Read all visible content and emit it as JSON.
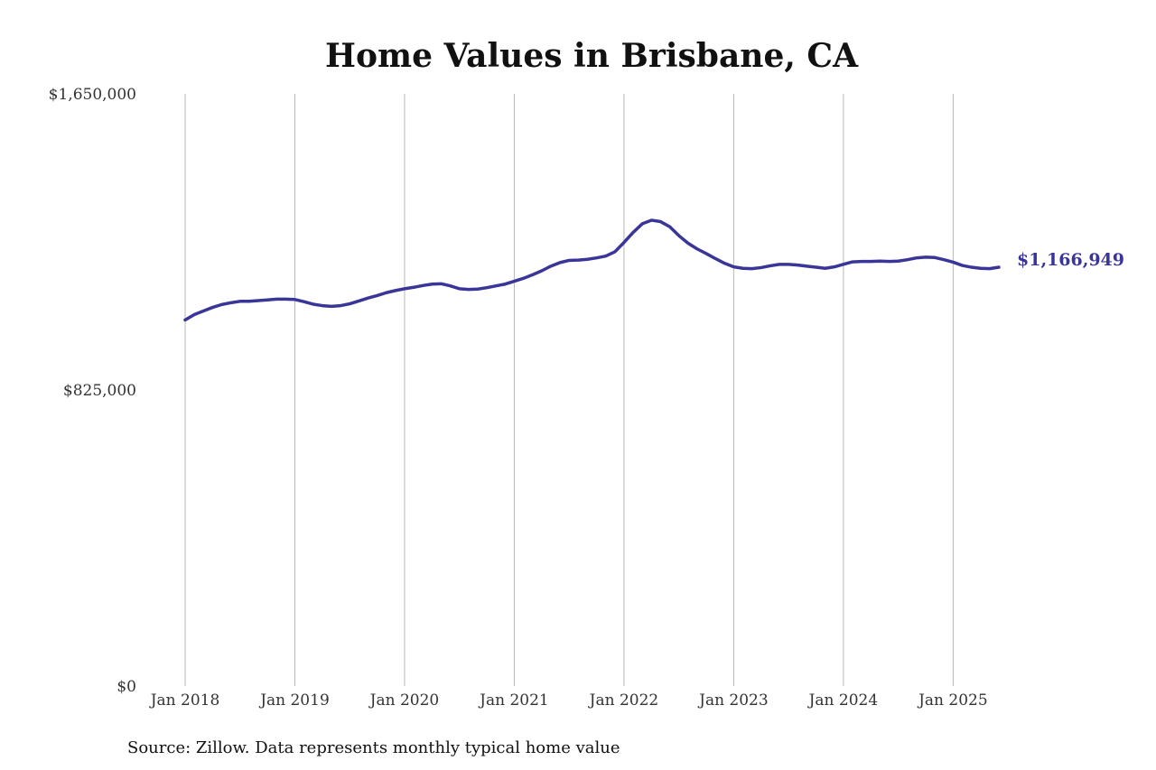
{
  "source_note": "Source: Zillow. Data represents monthly typical home value",
  "colors": {
    "line": "#3a3598",
    "grid": "#b8b8b8",
    "text": "#333333"
  },
  "chart_data": {
    "type": "line",
    "title": "Home Values in Brisbane, CA",
    "xlabel": "",
    "ylabel": "",
    "ylim": [
      0,
      1650000
    ],
    "y_ticks": [
      {
        "value": 0,
        "label": "$0"
      },
      {
        "value": 825000,
        "label": "$825,000"
      },
      {
        "value": 1650000,
        "label": "$1,650,000"
      }
    ],
    "x_ticks": [
      {
        "value": "2018-01",
        "label": "Jan 2018"
      },
      {
        "value": "2019-01",
        "label": "Jan 2019"
      },
      {
        "value": "2020-01",
        "label": "Jan 2020"
      },
      {
        "value": "2021-01",
        "label": "Jan 2021"
      },
      {
        "value": "2022-01",
        "label": "Jan 2022"
      },
      {
        "value": "2023-01",
        "label": "Jan 2023"
      },
      {
        "value": "2024-01",
        "label": "Jan 2024"
      },
      {
        "value": "2025-01",
        "label": "Jan 2025"
      }
    ],
    "xlim": [
      "2018-01",
      "2025-06"
    ],
    "grid": "vertical",
    "end_label": "$1,166,949",
    "series": [
      {
        "x": [
          "2018-01",
          "2018-02",
          "2018-03",
          "2018-04",
          "2018-05",
          "2018-06",
          "2018-07",
          "2018-08",
          "2018-09",
          "2018-10",
          "2018-11",
          "2018-12",
          "2019-01",
          "2019-02",
          "2019-03",
          "2019-04",
          "2019-05",
          "2019-06",
          "2019-07",
          "2019-08",
          "2019-09",
          "2019-10",
          "2019-11",
          "2019-12",
          "2020-01",
          "2020-02",
          "2020-03",
          "2020-04",
          "2020-05",
          "2020-06",
          "2020-07",
          "2020-08",
          "2020-09",
          "2020-10",
          "2020-11",
          "2020-12",
          "2021-01",
          "2021-02",
          "2021-03",
          "2021-04",
          "2021-05",
          "2021-06",
          "2021-07",
          "2021-08",
          "2021-09",
          "2021-10",
          "2021-11",
          "2021-12",
          "2022-01",
          "2022-02",
          "2022-03",
          "2022-04",
          "2022-05",
          "2022-06",
          "2022-07",
          "2022-08",
          "2022-09",
          "2022-10",
          "2022-11",
          "2022-12",
          "2023-01",
          "2023-02",
          "2023-03",
          "2023-04",
          "2023-05",
          "2023-06",
          "2023-07",
          "2023-08",
          "2023-09",
          "2023-10",
          "2023-11",
          "2023-12",
          "2024-01",
          "2024-02",
          "2024-03",
          "2024-04",
          "2024-05",
          "2024-06",
          "2024-07",
          "2024-08",
          "2024-09",
          "2024-10",
          "2024-11",
          "2024-12",
          "2025-01",
          "2025-02",
          "2025-03",
          "2025-04",
          "2025-05",
          "2025-06"
        ],
        "values": [
          1020000,
          1035000,
          1045000,
          1055000,
          1063000,
          1068000,
          1072000,
          1072000,
          1074000,
          1076000,
          1078000,
          1078000,
          1077000,
          1071000,
          1064000,
          1060000,
          1058000,
          1060000,
          1065000,
          1073000,
          1081000,
          1088000,
          1096000,
          1102000,
          1107000,
          1111000,
          1116000,
          1120000,
          1121000,
          1115000,
          1107000,
          1105000,
          1106000,
          1110000,
          1115000,
          1120000,
          1128000,
          1136000,
          1146000,
          1157000,
          1170000,
          1180000,
          1186000,
          1187000,
          1189000,
          1193000,
          1198000,
          1210000,
          1236000,
          1264000,
          1288000,
          1298000,
          1294000,
          1280000,
          1255000,
          1234000,
          1218000,
          1205000,
          1191000,
          1178000,
          1168000,
          1164000,
          1163000,
          1166000,
          1171000,
          1175000,
          1175000,
          1173000,
          1170000,
          1167000,
          1164000,
          1168000,
          1175000,
          1182000,
          1183000,
          1183000,
          1184000,
          1183000,
          1184000,
          1188000,
          1193000,
          1195000,
          1194000,
          1188000,
          1181000,
          1172000,
          1167000,
          1164000,
          1163000,
          1167000
        ]
      }
    ]
  }
}
